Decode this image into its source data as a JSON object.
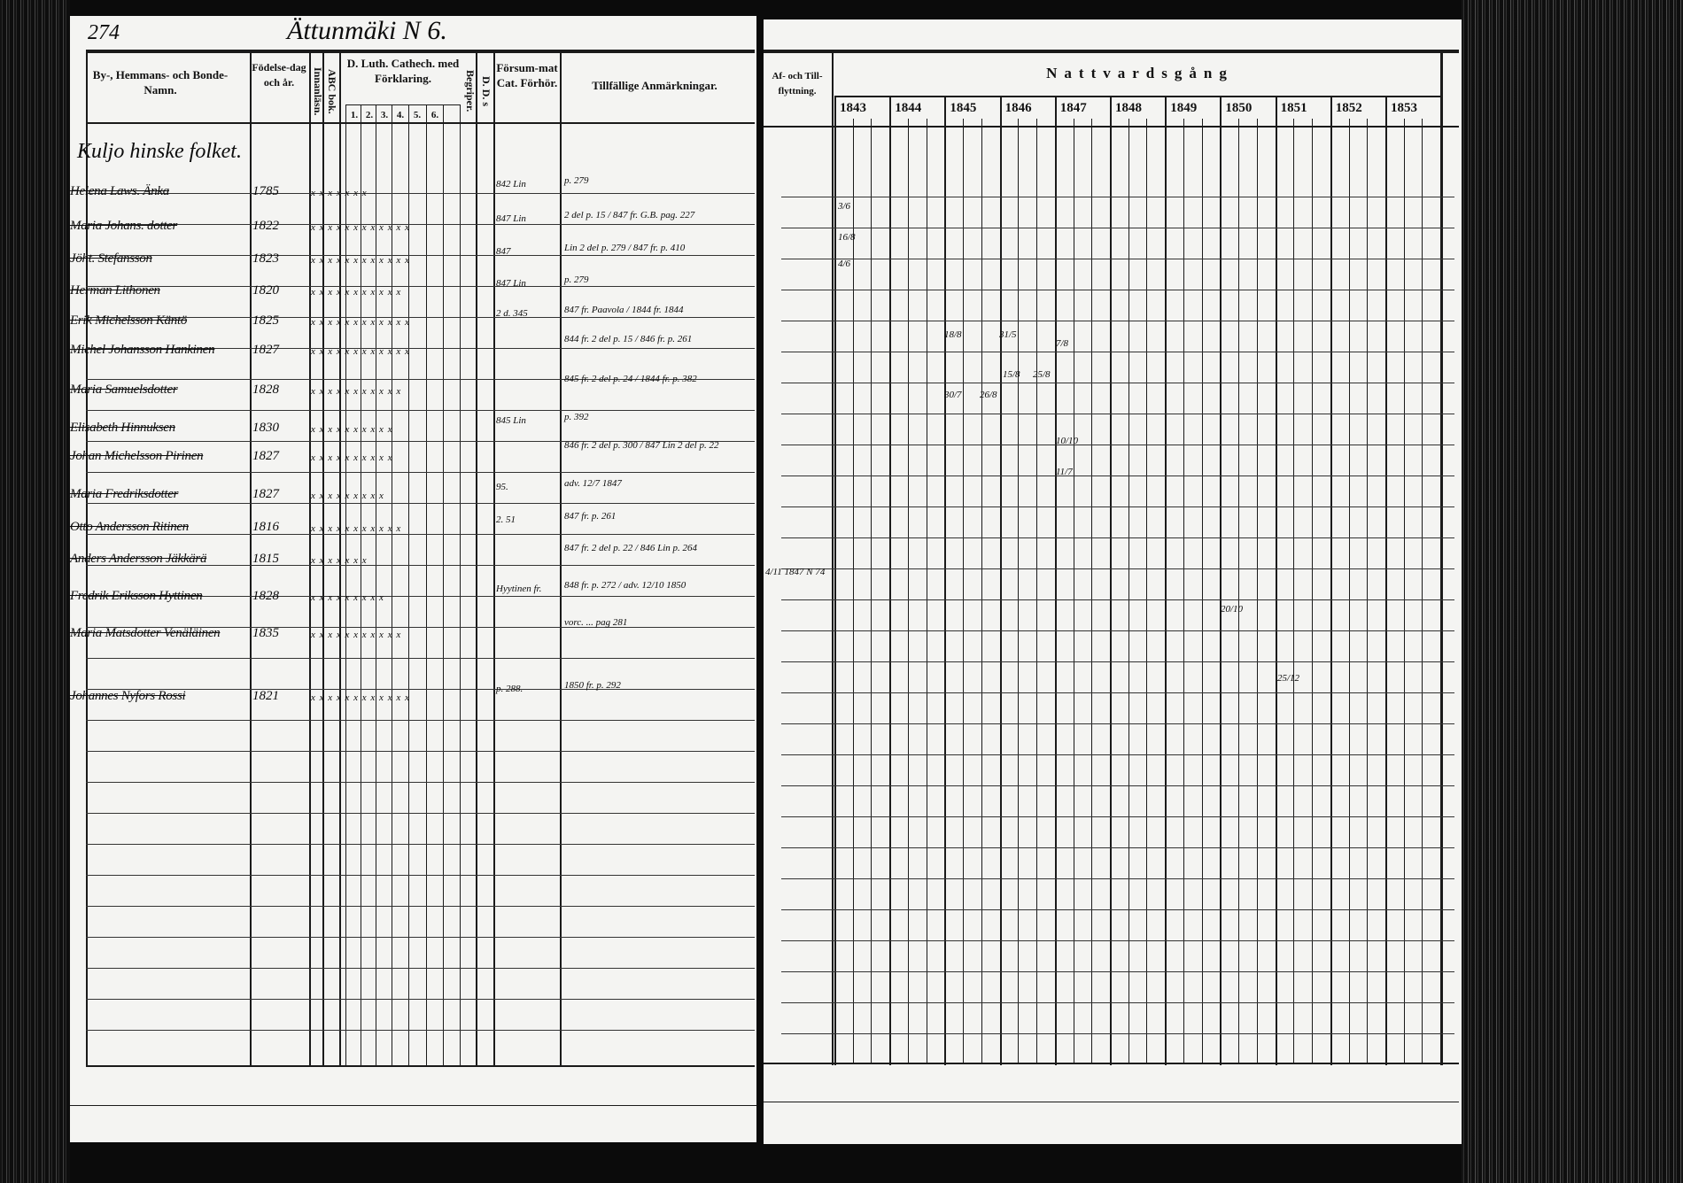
{
  "page_number": "274",
  "page_title": "Ättunmäki N 6.",
  "household_heading": "Kuljo hinske folket.",
  "left_headers": {
    "name": "By-, Hemmans- och Bonde-Namn.",
    "birth": "Födelse-dag och år.",
    "reading": "Innanläsn.",
    "abc": "ABC bok.",
    "catechism": "D. Luth. Cathech. med Förklaring.",
    "cat_cols": [
      "1.",
      "2.",
      "3.",
      "4.",
      "5.",
      "6."
    ],
    "understanding": "Begriper.",
    "dd": "D. D. s",
    "missed": "Försum-mat Cat. Förhör.",
    "remarks": "Tillfällige Anmärkningar."
  },
  "right_headers": {
    "moves": "Af- och Till-flyttning.",
    "communion": "Nattvardsgång",
    "years": [
      "1843",
      "1844",
      "1845",
      "1846",
      "1847",
      "1848",
      "1849",
      "1850",
      "1851",
      "1852",
      "1853"
    ]
  },
  "entries": [
    {
      "name": "Helena Laws. Änka",
      "birth": "1785",
      "marks": "x x x x x x x",
      "missed": "842 Lin",
      "remarks": "p. 279"
    },
    {
      "name": "Maria Johans. dotter",
      "birth": "1822",
      "marks": "x x x x x x x x x x x x",
      "missed": "847 Lin",
      "remarks": "2 del p. 15 / 847 fr. G.B. pag. 227"
    },
    {
      "name": "Jöht. Stefansson",
      "birth": "1823",
      "marks": "x x x x x x x x x x x x",
      "missed": "847",
      "remarks": "Lin 2 del p. 279 / 847 fr. p. 410"
    },
    {
      "name": "Herman Lithonen",
      "birth": "1820",
      "marks": "x x x x x x x x x x x",
      "missed": "847 Lin",
      "remarks": "p. 279"
    },
    {
      "name": "Erik Michelsson Käntö",
      "birth": "1825",
      "marks": "x x x x x x x x x x x x",
      "missed": "2 d. 345",
      "remarks": "847 fr. Paavola / 1844 fr. 1844"
    },
    {
      "name": "Michel Johansson Hankinen",
      "birth": "1827",
      "marks": "x x x x x x x x x x x x",
      "missed": "",
      "remarks": "844 fr. 2 del p. 15 / 846 fr. p. 261"
    },
    {
      "name": "Maria Samuelsdotter",
      "birth": "1828",
      "marks": "x x x x x x x x x x x",
      "missed": "",
      "remarks": "845 fr. 2 del p. 24 / 1844 fr. p. 382"
    },
    {
      "name": "Elisabeth Hinnuksen",
      "birth": "1830",
      "marks": "x x x x x x x x x x",
      "missed": "845 Lin",
      "remarks": "p. 392"
    },
    {
      "name": "Johan Michelsson Pirinen",
      "birth": "1827",
      "marks": "x x x x x x x x x x",
      "missed": "",
      "remarks": "846 fr. 2 del p. 300 / 847 Lin 2 del p. 22"
    },
    {
      "name": "Maria Fredriksdotter",
      "birth": "1827",
      "marks": "x x x x x x x x x",
      "missed": "95.",
      "remarks": "adv. 12/7 1847"
    },
    {
      "name": "Otto Andersson Ritinen",
      "birth": "1816",
      "marks": "x x x x x x x x x x x",
      "missed": "2. 51",
      "remarks": "847 fr. p. 261"
    },
    {
      "name": "Anders Andersson Jäkkärä",
      "birth": "1815",
      "marks": "x x x x x x x",
      "missed": "",
      "remarks": "847 fr. 2 del p. 22 / 846 Lin p. 264"
    },
    {
      "name": "Fredrik Eriksson Hyttinen",
      "birth": "1828",
      "marks": "x x x x x x x x x",
      "missed": "Hyytinen fr.",
      "remarks": "848 fr. p. 272 / adv. 12/10 1850"
    },
    {
      "name": "Maria Matsdotter Venäläinen",
      "birth": "1835",
      "marks": "x x x x x x x x x x x",
      "missed": "",
      "remarks": "vorc. ... pag 281"
    },
    {
      "name": "Johannes Nyfors Rossi",
      "birth": "1821",
      "marks": "x x x x x x x x x x x x",
      "missed": "p. 288.",
      "remarks": "1850 fr. p. 292"
    }
  ],
  "moves_notes": [
    "4/11 1847 N 74"
  ],
  "communion_marks": [
    "3/6",
    "16/8",
    "4/6",
    "18/8",
    "31/5",
    "7/8",
    "15/8",
    "25/8",
    "30/7",
    "26/8",
    "10/10",
    "11/7",
    "20/10",
    "25/12"
  ]
}
